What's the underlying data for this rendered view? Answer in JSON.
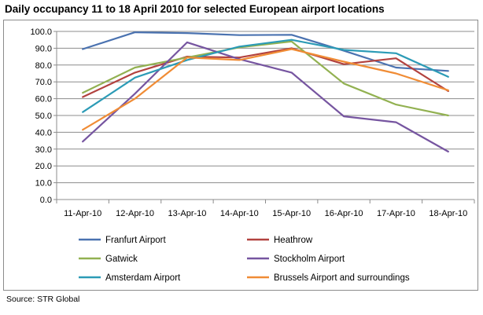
{
  "page": {
    "title": "Daily occupancy 11  to 18 April 2010  for selected European airport locations",
    "source": "Source: STR Global"
  },
  "chart_data": {
    "type": "line",
    "title": "Daily occupancy 11  to 18 April 2010  for selected European airport locations",
    "xlabel": "",
    "ylabel": "",
    "categories": [
      "11-Apr-10",
      "12-Apr-10",
      "13-Apr-10",
      "14-Apr-10",
      "15-Apr-10",
      "16-Apr-10",
      "17-Apr-10",
      "18-Apr-10"
    ],
    "ylim": [
      0,
      100
    ],
    "yticks": [
      "0.0",
      "10.0",
      "20.0",
      "30.0",
      "40.0",
      "50.0",
      "60.0",
      "70.0",
      "80.0",
      "90.0",
      "100.0"
    ],
    "grid": "horizontal",
    "legend_position": "bottom",
    "series": [
      {
        "name": "Franfurt Airport",
        "color": "#4a72b0",
        "values": [
          89.5,
          99.5,
          99.0,
          97.8,
          98.0,
          88.5,
          78.5,
          76.5
        ]
      },
      {
        "name": "Heathrow",
        "color": "#b2423f",
        "values": [
          61.0,
          75.5,
          85.0,
          84.5,
          90.0,
          80.5,
          84.0,
          64.5
        ]
      },
      {
        "name": "Gatwick",
        "color": "#92b151",
        "values": [
          63.5,
          78.5,
          84.5,
          90.5,
          94.0,
          69.0,
          56.5,
          50.0
        ]
      },
      {
        "name": "Stockholm Airport",
        "color": "#7655a0",
        "values": [
          34.5,
          63.0,
          93.5,
          83.5,
          75.5,
          49.5,
          46.0,
          28.5
        ]
      },
      {
        "name": "Amsterdam Airport",
        "color": "#2c9bb6",
        "values": [
          52.0,
          72.5,
          83.0,
          91.0,
          95.0,
          89.0,
          87.0,
          73.0
        ]
      },
      {
        "name": "Brussels Airport and surroundings",
        "color": "#f08c35",
        "values": [
          41.5,
          60.0,
          84.5,
          83.0,
          89.5,
          82.0,
          75.0,
          65.0
        ]
      }
    ]
  }
}
